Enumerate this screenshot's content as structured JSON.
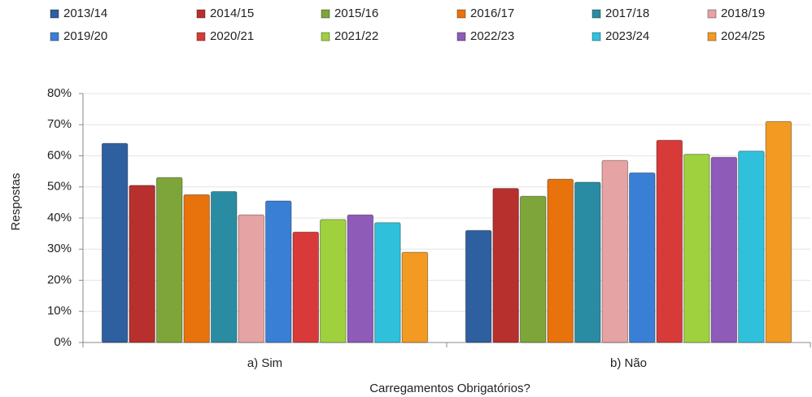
{
  "chart_data": {
    "type": "bar",
    "legend": "top",
    "grid": true,
    "xlabel": "Carregamentos Obrigatórios?",
    "ylabel": "Respostas",
    "categories": [
      "a) Sim",
      "b) Não"
    ],
    "ylim": [
      0,
      80
    ],
    "yticks": [
      {
        "value": 0,
        "label": "0%"
      },
      {
        "value": 10,
        "label": "10%"
      },
      {
        "value": 20,
        "label": "20%"
      },
      {
        "value": 30,
        "label": "30%"
      },
      {
        "value": 40,
        "label": "40%"
      },
      {
        "value": 50,
        "label": "50%"
      },
      {
        "value": 60,
        "label": "60%"
      },
      {
        "value": 70,
        "label": "70%"
      },
      {
        "value": 80,
        "label": "80%"
      }
    ],
    "series": [
      {
        "name": "2013/14",
        "color": "#2e5f9e",
        "values": [
          64,
          36
        ]
      },
      {
        "name": "2014/15",
        "color": "#b8302e",
        "values": [
          50.5,
          49.5
        ]
      },
      {
        "name": "2015/16",
        "color": "#7ea53a",
        "values": [
          53,
          47
        ]
      },
      {
        "name": "2016/17",
        "color": "#e8720c",
        "values": [
          47.5,
          52.5
        ]
      },
      {
        "name": "2017/18",
        "color": "#2a8ca3",
        "values": [
          48.5,
          51.5
        ]
      },
      {
        "name": "2018/19",
        "color": "#e6a3a3",
        "values": [
          41,
          58.5
        ]
      },
      {
        "name": "2019/20",
        "color": "#3a7fd6",
        "values": [
          45.5,
          54.5
        ]
      },
      {
        "name": "2020/21",
        "color": "#d83a3a",
        "values": [
          35.5,
          65
        ]
      },
      {
        "name": "2021/22",
        "color": "#9fd13e",
        "values": [
          39.5,
          60.5
        ]
      },
      {
        "name": "2022/23",
        "color": "#8e5bb8",
        "values": [
          41,
          59.5
        ]
      },
      {
        "name": "2023/24",
        "color": "#2fc1dc",
        "values": [
          38.5,
          61.5
        ]
      },
      {
        "name": "2024/25",
        "color": "#f29a22",
        "values": [
          29,
          71
        ]
      }
    ]
  }
}
